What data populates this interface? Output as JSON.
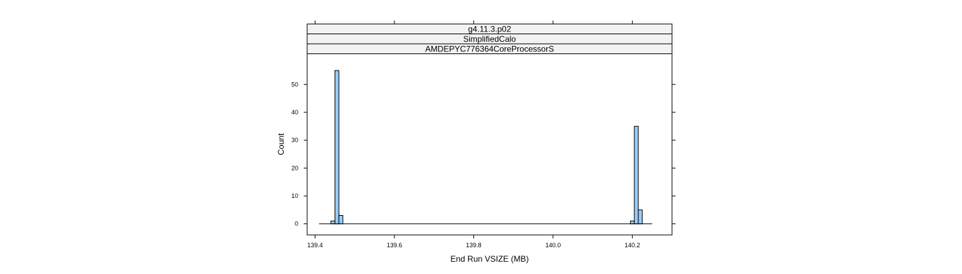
{
  "chart_data": {
    "type": "bar",
    "strips": [
      "g4.11.3.p02",
      "SimplifiedCalo",
      "AMDEPYC776364CoreProcessorS"
    ],
    "xlabel": "End Run VSIZE (MB)",
    "ylabel": "Count",
    "xlim": [
      139.38,
      140.3
    ],
    "ylim": [
      -4,
      61
    ],
    "xticks": [
      139.4,
      139.6,
      139.8,
      140.0,
      140.2
    ],
    "xtick_labels": [
      "139.4",
      "139.6",
      "139.8",
      "140.0",
      "140.2"
    ],
    "yticks": [
      0,
      10,
      20,
      30,
      40,
      50
    ],
    "ytick_labels": [
      "0",
      "10",
      "20",
      "30",
      "40",
      "50"
    ],
    "baseline_range": [
      139.41,
      140.25
    ],
    "bins": [
      {
        "x0": 139.44,
        "x1": 139.45,
        "count": 1
      },
      {
        "x0": 139.45,
        "x1": 139.46,
        "count": 55
      },
      {
        "x0": 139.46,
        "x1": 139.47,
        "count": 3
      },
      {
        "x0": 140.195,
        "x1": 140.205,
        "count": 1
      },
      {
        "x0": 140.205,
        "x1": 140.215,
        "count": 35
      },
      {
        "x0": 140.215,
        "x1": 140.225,
        "count": 5
      }
    ],
    "bar_fill": "#99ccff",
    "strip_fill": "#f2f2f2"
  }
}
